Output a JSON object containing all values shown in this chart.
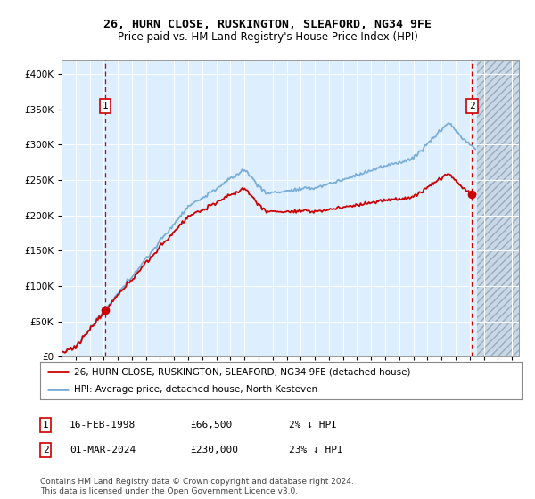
{
  "title": "26, HURN CLOSE, RUSKINGTON, SLEAFORD, NG34 9FE",
  "subtitle": "Price paid vs. HM Land Registry's House Price Index (HPI)",
  "sale1_date_label": "16-FEB-1998",
  "sale1_price": 66500,
  "sale1_price_label": "£66,500",
  "sale1_pct": "2% ↓ HPI",
  "sale2_date_label": "01-MAR-2024",
  "sale2_price": 230000,
  "sale2_price_label": "£230,000",
  "sale2_pct": "23% ↓ HPI",
  "legend_line1": "26, HURN CLOSE, RUSKINGTON, SLEAFORD, NG34 9FE (detached house)",
  "legend_line2": "HPI: Average price, detached house, North Kesteven",
  "footnote": "Contains HM Land Registry data © Crown copyright and database right 2024.\nThis data is licensed under the Open Government Licence v3.0.",
  "sale_line_color": "#cc0000",
  "hpi_line_color": "#7aaed6",
  "marker_color": "#cc0000",
  "dashed_line_color": "#cc0000",
  "bg_color": "#ddeeff",
  "ylim": [
    0,
    420000
  ],
  "yticks": [
    0,
    50000,
    100000,
    150000,
    200000,
    250000,
    300000,
    350000,
    400000
  ],
  "xstart": 1995.0,
  "xend": 2027.5,
  "sale1_t": 1998.125,
  "sale2_t": 2024.167
}
